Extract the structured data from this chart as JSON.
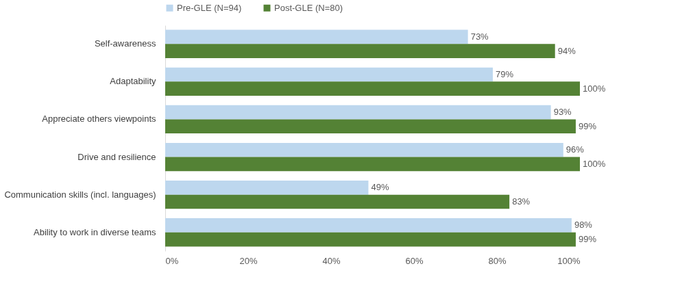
{
  "chart_data": {
    "type": "bar",
    "orientation": "horizontal",
    "categories": [
      "Self-awareness",
      "Adaptability",
      "Appreciate others viewpoints",
      "Drive and resilience",
      "Communication skills (incl. languages)",
      "Ability to work in diverse teams"
    ],
    "series": [
      {
        "name": "Pre-GLE (N=94)",
        "color": "#bdd7ee",
        "values": [
          73,
          79,
          93,
          96,
          49,
          98
        ],
        "value_labels": [
          "73%",
          "79%",
          "93%",
          "96%",
          "49%",
          "98%"
        ]
      },
      {
        "name": "Post-GLE (N=80)",
        "color": "#548235",
        "values": [
          94,
          100,
          99,
          100,
          83,
          99
        ],
        "value_labels": [
          "94%",
          "100%",
          "99%",
          "100%",
          "83%",
          "99%"
        ]
      }
    ],
    "xlim": [
      0,
      100
    ],
    "xticks": [
      {
        "value": 0,
        "label": "0%"
      },
      {
        "value": 20,
        "label": "20%"
      },
      {
        "value": 40,
        "label": "40%"
      },
      {
        "value": 60,
        "label": "60%"
      },
      {
        "value": 80,
        "label": "80%"
      },
      {
        "value": 100,
        "label": "100%"
      }
    ],
    "legend": "top",
    "grid": false
  }
}
